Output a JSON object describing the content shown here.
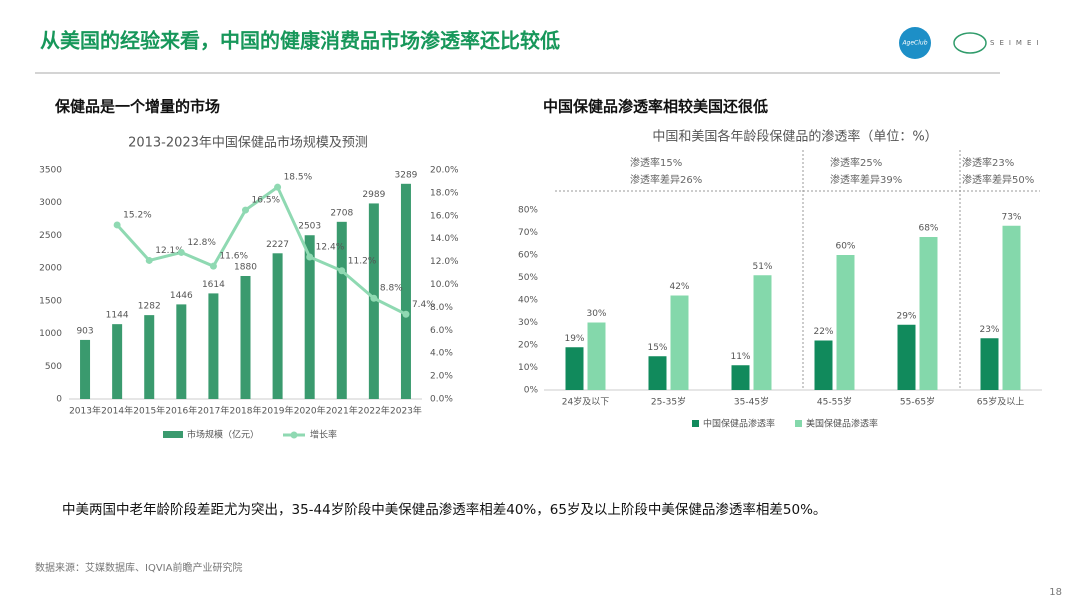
{
  "header": {
    "title": "从美国的经验来看，中国的健康消费品市场渗透率还比较低",
    "logo_left": "AgeClub",
    "logo_right": "SEIMEI"
  },
  "chart_data": [
    {
      "type": "bar",
      "heading": "保健品是一个增量的市场",
      "title": "2013-2023年中国保健品市场规模及预测",
      "categories": [
        "2013年",
        "2014年",
        "2015年",
        "2016年",
        "2017年",
        "2018年",
        "2019年",
        "2020年",
        "2021年",
        "2022年",
        "2023年"
      ],
      "series": [
        {
          "name": "市场规模（亿元）",
          "type": "bar",
          "color": "#3a9a6e",
          "values": [
            903,
            1144,
            1282,
            1446,
            1614,
            1880,
            2227,
            2503,
            2708,
            2989,
            3289
          ]
        },
        {
          "name": "增长率",
          "type": "line",
          "axis": "y2",
          "color": "#8fd9b2",
          "values": [
            null,
            15.2,
            12.1,
            12.8,
            11.6,
            16.5,
            18.5,
            12.4,
            11.2,
            8.8,
            7.4
          ],
          "value_labels": [
            null,
            "15.2%",
            "12.1%",
            "12.8%",
            "11.6%",
            "16.5%",
            "18.5%",
            "12.4%",
            "11.2%",
            "8.8%",
            "7.4%"
          ]
        }
      ],
      "ylim": [
        0,
        3500
      ],
      "yticks": [
        0,
        500,
        1000,
        1500,
        2000,
        2500,
        3000,
        3500
      ],
      "y2lim": [
        0,
        20
      ],
      "y2ticks": [
        {
          "value": 0,
          "label": "0.0%"
        },
        {
          "value": 2,
          "label": "2.0%"
        },
        {
          "value": 4,
          "label": "4.0%"
        },
        {
          "value": 6,
          "label": "6.0%"
        },
        {
          "value": 8,
          "label": "8.0%"
        },
        {
          "value": 10,
          "label": "10.0%"
        },
        {
          "value": 12,
          "label": "12.0%"
        },
        {
          "value": 14,
          "label": "14.0%"
        },
        {
          "value": 16,
          "label": "16.0%"
        },
        {
          "value": 18,
          "label": "18.0%"
        },
        {
          "value": 20,
          "label": "20.0%"
        }
      ],
      "grid": false,
      "legend": "bottom"
    },
    {
      "type": "bar",
      "heading": "中国保健品渗透率相较美国还很低",
      "title": "中国和美国各年龄段保健品的渗透率（单位：%）",
      "categories": [
        "24岁及以下",
        "25-35岁",
        "35-45岁",
        "45-55岁",
        "55-65岁",
        "65岁及以上"
      ],
      "series": [
        {
          "name": "中国保健品渗透率",
          "color": "#118a5c",
          "values": [
            19,
            15,
            11,
            22,
            29,
            23
          ],
          "value_labels": [
            "19%",
            "15%",
            "11%",
            "22%",
            "29%",
            "23%"
          ]
        },
        {
          "name": "美国保健品渗透率",
          "color": "#84d8ab",
          "values": [
            30,
            42,
            51,
            60,
            68,
            73
          ],
          "value_labels": [
            "30%",
            "42%",
            "51%",
            "60%",
            "68%",
            "73%"
          ]
        }
      ],
      "ylim": [
        0,
        80
      ],
      "yticks": [
        {
          "value": 0,
          "label": "0%"
        },
        {
          "value": 10,
          "label": "10%"
        },
        {
          "value": 20,
          "label": "20%"
        },
        {
          "value": 30,
          "label": "30%"
        },
        {
          "value": 40,
          "label": "40%"
        },
        {
          "value": 50,
          "label": "50%"
        },
        {
          "value": 60,
          "label": "60%"
        },
        {
          "value": 70,
          "label": "70%"
        },
        {
          "value": 80,
          "label": "80%"
        }
      ],
      "grid": false,
      "legend": "bottom",
      "annotations": [
        [
          "渗透率15%",
          "渗透率差异26%"
        ],
        [
          "渗透率25%",
          "渗透率差异39%"
        ],
        [
          "渗透率23%",
          "渗透率差异50%"
        ]
      ]
    }
  ],
  "footer": {
    "summary": "中美两国中老年龄阶段差距尤为突出，35-44岁阶段中美保健品渗透率相差40%，65岁及以上阶段中美保健品渗透率相差50%。",
    "source": "数据来源：艾媒数据库、IQVIA前瞻产业研究院",
    "page": "18"
  }
}
